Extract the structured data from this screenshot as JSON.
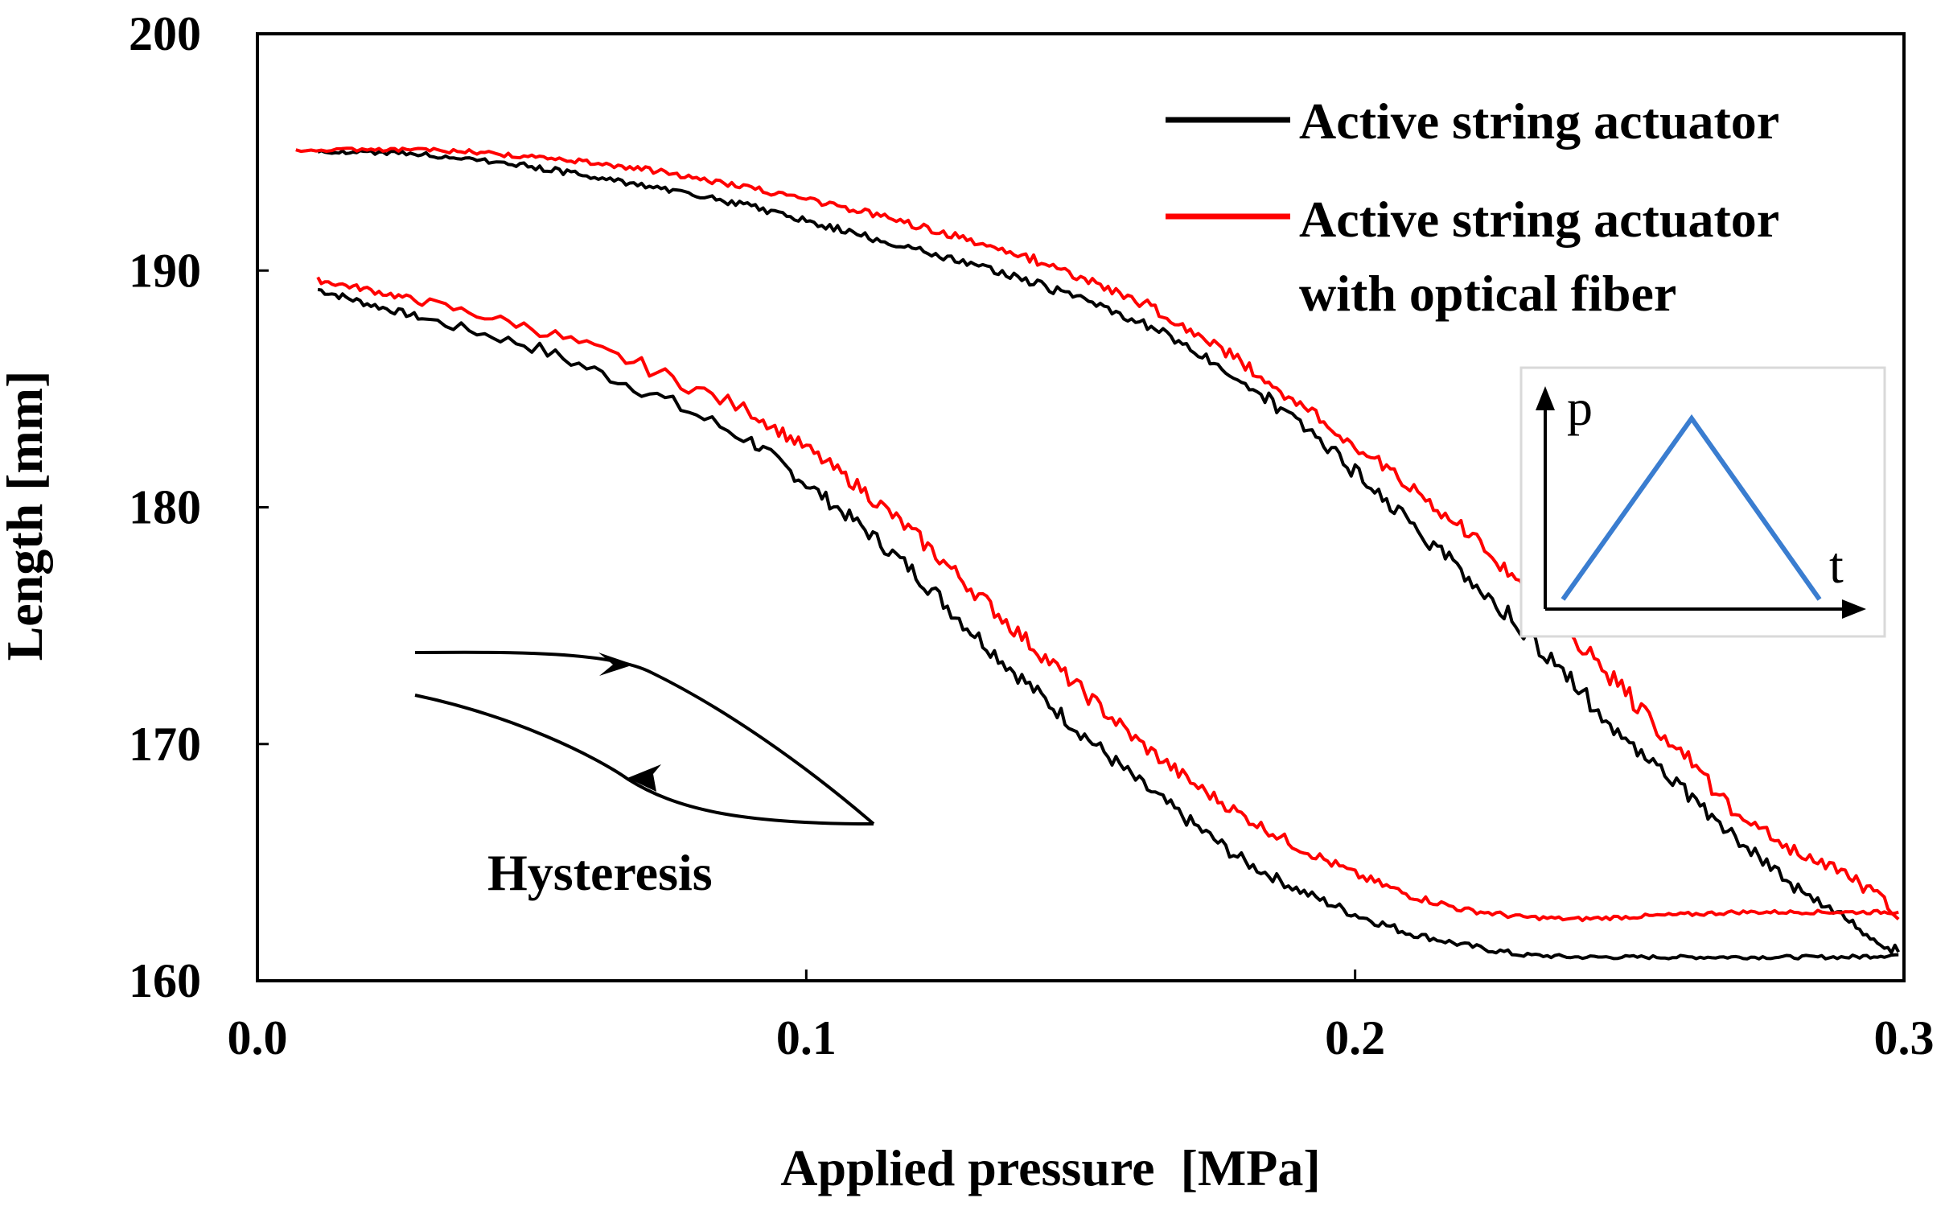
{
  "chart_data": {
    "type": "line",
    "title": "",
    "xlabel": "Applied pressure  [MPa]",
    "ylabel": "Length [mm]",
    "xlim": [
      0.0,
      0.3
    ],
    "ylim": [
      160,
      200
    ],
    "xticks": [
      0.0,
      0.1,
      0.2,
      0.3
    ],
    "xtick_labels": [
      "0.0",
      "0.1",
      "0.2",
      "0.3"
    ],
    "yticks": [
      160,
      170,
      180,
      190,
      200
    ],
    "ytick_labels": [
      "160",
      "170",
      "180",
      "190",
      "200"
    ],
    "grid": false,
    "legend_position": "top-right",
    "series": [
      {
        "name": "Active string actuator",
        "color": "#000000",
        "segments": [
          {
            "direction": "loading",
            "x": [
              0.011,
              0.02,
              0.03,
              0.05,
              0.07,
              0.09,
              0.1,
              0.11,
              0.12,
              0.13,
              0.14,
              0.15,
              0.16,
              0.17,
              0.18,
              0.19,
              0.2,
              0.21,
              0.22,
              0.23,
              0.24,
              0.25,
              0.26,
              0.27,
              0.28,
              0.29,
              0.299
            ],
            "y": [
              189.2,
              188.6,
              188.0,
              186.8,
              185.0,
              182.8,
              181.0,
              179.2,
              177.2,
              174.8,
              172.6,
              170.5,
              168.5,
              166.7,
              165.0,
              163.8,
              162.8,
              162.0,
              161.5,
              161.1,
              161.0,
              161.0,
              161.0,
              161.0,
              161.0,
              161.0,
              161.1
            ]
          },
          {
            "direction": "unloading",
            "x": [
              0.299,
              0.29,
              0.28,
              0.27,
              0.26,
              0.25,
              0.24,
              0.23,
              0.22,
              0.21,
              0.2,
              0.19,
              0.18,
              0.17,
              0.16,
              0.15,
              0.14,
              0.13,
              0.12,
              0.11,
              0.1,
              0.09,
              0.08,
              0.07,
              0.06,
              0.05,
              0.04,
              0.03,
              0.02,
              0.011
            ],
            "y": [
              161.2,
              162.5,
              164.0,
              166.0,
              168.0,
              170.0,
              172.5,
              175.0,
              177.2,
              179.3,
              181.5,
              183.5,
              185.3,
              186.8,
              187.9,
              188.8,
              189.6,
              190.3,
              190.9,
              191.5,
              192.1,
              192.7,
              193.2,
              193.6,
              194.0,
              194.4,
              194.7,
              194.9,
              195.0,
              195.0
            ]
          }
        ]
      },
      {
        "name": "Active string actuator\nwith optical fiber",
        "color": "#ff0000",
        "segments": [
          {
            "direction": "loading",
            "x": [
              0.011,
              0.02,
              0.03,
              0.05,
              0.07,
              0.09,
              0.1,
              0.11,
              0.12,
              0.13,
              0.14,
              0.15,
              0.16,
              0.17,
              0.18,
              0.19,
              0.2,
              0.21,
              0.22,
              0.23,
              0.24,
              0.25,
              0.26,
              0.27,
              0.28,
              0.29,
              0.299
            ],
            "y": [
              189.6,
              189.2,
              188.7,
              187.6,
              186.0,
              184.0,
              182.5,
              180.8,
              178.8,
              176.6,
              174.4,
              172.3,
              170.2,
              168.4,
              166.9,
              165.6,
              164.5,
              163.6,
              163.0,
              162.7,
              162.6,
              162.7,
              162.8,
              162.9,
              162.9,
              162.9,
              162.9
            ]
          },
          {
            "direction": "unloading",
            "x": [
              0.299,
              0.29,
              0.28,
              0.27,
              0.26,
              0.25,
              0.24,
              0.23,
              0.22,
              0.21,
              0.2,
              0.19,
              0.18,
              0.17,
              0.16,
              0.15,
              0.14,
              0.13,
              0.12,
              0.11,
              0.1,
              0.09,
              0.08,
              0.07,
              0.06,
              0.05,
              0.04,
              0.03,
              0.02,
              0.007
            ],
            "y": [
              162.8,
              164.5,
              165.5,
              167.0,
              169.5,
              172.0,
              174.5,
              176.8,
              179.0,
              180.9,
              182.6,
              184.3,
              186.0,
              187.5,
              188.8,
              189.7,
              190.6,
              191.3,
              191.9,
              192.5,
              193.0,
              193.5,
              193.9,
              194.3,
              194.6,
              194.8,
              195.0,
              195.1,
              195.1,
              195.1
            ]
          }
        ]
      }
    ],
    "annotations": {
      "hysteresis_label": "Hysteresis",
      "inset": {
        "y_label": "p",
        "x_label": "t",
        "line_color": "#3a7dd0",
        "shape": "triangle"
      }
    }
  }
}
